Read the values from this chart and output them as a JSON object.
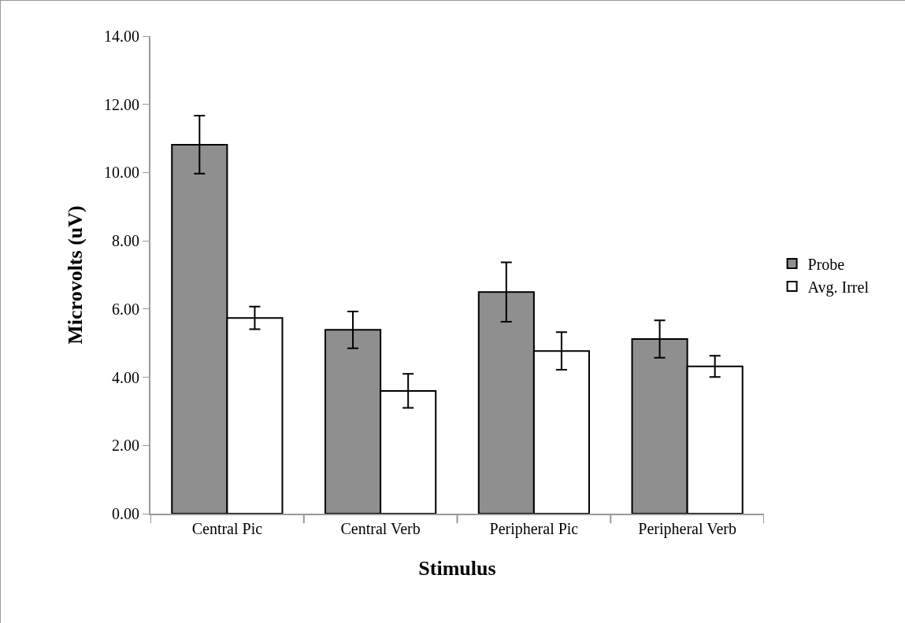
{
  "chart_data": {
    "type": "bar",
    "xlabel": "Stimulus",
    "ylabel": "Microvolts (uV)",
    "categories": [
      "Central Pic",
      "Central Verb",
      "Peripheral Pic",
      "Peripheral Verb"
    ],
    "series": [
      {
        "name": "Probe",
        "color": "#8f8f8f",
        "values": [
          10.82,
          5.39,
          6.5,
          5.12
        ],
        "errors": [
          0.85,
          0.54,
          0.87,
          0.55
        ]
      },
      {
        "name": "Avg. Irrel",
        "color": "#ffffff",
        "values": [
          5.74,
          3.6,
          4.77,
          4.32
        ],
        "errors": [
          0.33,
          0.5,
          0.55,
          0.31
        ]
      }
    ],
    "ylim": [
      0,
      14
    ],
    "yticks": [
      {
        "value": 0,
        "label": "0.00"
      },
      {
        "value": 2,
        "label": "2.00"
      },
      {
        "value": 4,
        "label": "4.00"
      },
      {
        "value": 6,
        "label": "6.00"
      },
      {
        "value": 8,
        "label": "8.00"
      },
      {
        "value": 10,
        "label": "10.00"
      },
      {
        "value": 12,
        "label": "12.00"
      },
      {
        "value": 14,
        "label": "14.00"
      }
    ],
    "grid": false,
    "legend": "right"
  }
}
